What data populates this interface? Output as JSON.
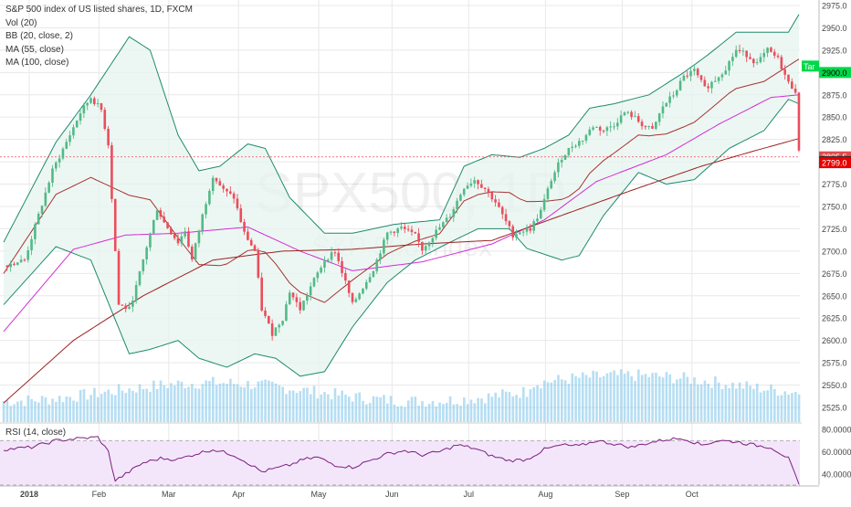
{
  "legend": {
    "title": "S&P 500 index of US listed shares, 1D, FXCM",
    "vol": "Vol (20)",
    "bb": "BB (20, close, 2)",
    "ma55": "MA (55, close)",
    "ma100": "MA (100, close)"
  },
  "rsi_legend": "RSI (14, close)",
  "watermark": {
    "symbol": "SPX500, 1D",
    "name": "S&P 500 index"
  },
  "colors": {
    "up": "#53b987",
    "down": "#eb4d5c",
    "bb": "#1e8a6e",
    "bb_fill": "#e5f4ef",
    "ma20": "#a83232",
    "ma55": "#d42bd4",
    "ma100": "#9c2222",
    "volume": "#7ac3ea",
    "rsi_line": "#7b1f7b",
    "rsi_band": "#f3e6fb",
    "target_green": "#00d84a",
    "target_fill": "#ccf7d9",
    "stop_fill": "#fbd3d3",
    "grid": "#e8e8e8"
  },
  "price_labels": {
    "target": "2900.0",
    "target_text": "Tar",
    "last": "2805.5",
    "current": "2800.0",
    "stop": "2799.0"
  },
  "chart_data": [
    {
      "type": "line",
      "title": "S&P 500 index of US listed shares, 1D, FXCM",
      "x_ticks": [
        "2018",
        "Feb",
        "Mar",
        "Apr",
        "May",
        "Jun",
        "Jul",
        "Aug",
        "Sep",
        "Oct"
      ],
      "y_ticks": [
        "2975.0",
        "2950.0",
        "2925.0",
        "2900.0",
        "2875.0",
        "2850.0",
        "2825.0",
        "2800.0",
        "2775.0",
        "2750.0",
        "2725.0",
        "2700.0",
        "2675.0",
        "2650.0",
        "2625.0",
        "2600.0",
        "2575.0",
        "2550.0",
        "2525.0"
      ],
      "ylim": [
        2508,
        2982
      ],
      "series": [
        {
          "name": "Price",
          "points": [
            [
              0,
              2684
            ],
            [
              6,
              2690
            ],
            [
              10,
              2740
            ],
            [
              14,
              2790
            ],
            [
              18,
              2822
            ],
            [
              22,
              2855
            ],
            [
              25,
              2872
            ],
            [
              28,
              2858
            ],
            [
              30,
              2820
            ],
            [
              33,
              2640
            ],
            [
              36,
              2635
            ],
            [
              38,
              2660
            ],
            [
              41,
              2705
            ],
            [
              44,
              2748
            ],
            [
              46,
              2732
            ],
            [
              50,
              2710
            ],
            [
              52,
              2723
            ],
            [
              54,
              2690
            ],
            [
              57,
              2740
            ],
            [
              60,
              2785
            ],
            [
              63,
              2768
            ],
            [
              66,
              2760
            ],
            [
              69,
              2720
            ],
            [
              72,
              2700
            ],
            [
              74,
              2635
            ],
            [
              77,
              2608
            ],
            [
              80,
              2625
            ],
            [
              82,
              2655
            ],
            [
              85,
              2635
            ],
            [
              88,
              2660
            ],
            [
              92,
              2690
            ],
            [
              95,
              2700
            ],
            [
              98,
              2665
            ],
            [
              100,
              2640
            ],
            [
              103,
              2660
            ],
            [
              106,
              2680
            ],
            [
              110,
              2720
            ],
            [
              114,
              2726
            ],
            [
              118,
              2717
            ],
            [
              120,
              2702
            ],
            [
              124,
              2722
            ],
            [
              128,
              2740
            ],
            [
              132,
              2772
            ],
            [
              135,
              2780
            ],
            [
              138,
              2770
            ],
            [
              141,
              2755
            ],
            [
              143,
              2740
            ],
            [
              146,
              2718
            ],
            [
              148,
              2722
            ],
            [
              151,
              2725
            ],
            [
              154,
              2745
            ],
            [
              157,
              2780
            ],
            [
              160,
              2805
            ],
            [
              163,
              2818
            ],
            [
              166,
              2825
            ],
            [
              169,
              2840
            ],
            [
              172,
              2835
            ],
            [
              175,
              2842
            ],
            [
              178,
              2855
            ],
            [
              180,
              2852
            ],
            [
              183,
              2842
            ],
            [
              186,
              2835
            ],
            [
              189,
              2862
            ],
            [
              192,
              2875
            ],
            [
              195,
              2895
            ],
            [
              198,
              2902
            ],
            [
              201,
              2882
            ],
            [
              204,
              2892
            ],
            [
              207,
              2905
            ],
            [
              210,
              2925
            ],
            [
              213,
              2920
            ],
            [
              216,
              2910
            ],
            [
              219,
              2925
            ],
            [
              222,
              2915
            ],
            [
              225,
              2888
            ],
            [
              227,
              2880
            ],
            [
              228,
              2810
            ]
          ]
        },
        {
          "name": "MA (55, close)",
          "points": [
            [
              0,
              2610
            ],
            [
              20,
              2702
            ],
            [
              35,
              2718
            ],
            [
              50,
              2720
            ],
            [
              70,
              2727
            ],
            [
              85,
              2700
            ],
            [
              100,
              2678
            ],
            [
              120,
              2688
            ],
            [
              140,
              2708
            ],
            [
              155,
              2735
            ],
            [
              170,
              2778
            ],
            [
              190,
              2808
            ],
            [
              205,
              2842
            ],
            [
              220,
              2872
            ],
            [
              228,
              2875
            ]
          ]
        },
        {
          "name": "MA (100, close)",
          "points": [
            [
              0,
              2530
            ],
            [
              20,
              2600
            ],
            [
              40,
              2650
            ],
            [
              60,
              2690
            ],
            [
              80,
              2700
            ],
            [
              100,
              2702
            ],
            [
              120,
              2708
            ],
            [
              140,
              2712
            ],
            [
              160,
              2740
            ],
            [
              180,
              2768
            ],
            [
              200,
              2795
            ],
            [
              215,
              2812
            ],
            [
              228,
              2826
            ]
          ]
        },
        {
          "name": "BB (20, close, 2) upper",
          "points": [
            [
              0,
              2710
            ],
            [
              15,
              2822
            ],
            [
              25,
              2875
            ],
            [
              36,
              2940
            ],
            [
              42,
              2925
            ],
            [
              50,
              2830
            ],
            [
              56,
              2790
            ],
            [
              62,
              2795
            ],
            [
              70,
              2820
            ],
            [
              75,
              2815
            ],
            [
              82,
              2760
            ],
            [
              92,
              2720
            ],
            [
              100,
              2720
            ],
            [
              112,
              2730
            ],
            [
              125,
              2735
            ],
            [
              132,
              2795
            ],
            [
              140,
              2808
            ],
            [
              148,
              2805
            ],
            [
              155,
              2815
            ],
            [
              162,
              2830
            ],
            [
              168,
              2860
            ],
            [
              175,
              2865
            ],
            [
              185,
              2875
            ],
            [
              195,
              2900
            ],
            [
              202,
              2920
            ],
            [
              210,
              2945
            ],
            [
              218,
              2945
            ],
            [
              225,
              2945
            ],
            [
              228,
              2965
            ]
          ]
        },
        {
          "name": "BB (20, close, 2) lower",
          "points": [
            [
              0,
              2640
            ],
            [
              15,
              2705
            ],
            [
              25,
              2690
            ],
            [
              36,
              2585
            ],
            [
              42,
              2590
            ],
            [
              50,
              2600
            ],
            [
              56,
              2580
            ],
            [
              64,
              2570
            ],
            [
              72,
              2585
            ],
            [
              78,
              2580
            ],
            [
              85,
              2560
            ],
            [
              92,
              2565
            ],
            [
              100,
              2615
            ],
            [
              110,
              2665
            ],
            [
              118,
              2690
            ],
            [
              128,
              2710
            ],
            [
              136,
              2725
            ],
            [
              145,
              2725
            ],
            [
              150,
              2703
            ],
            [
              160,
              2690
            ],
            [
              165,
              2695
            ],
            [
              172,
              2740
            ],
            [
              182,
              2788
            ],
            [
              190,
              2775
            ],
            [
              198,
              2780
            ],
            [
              208,
              2815
            ],
            [
              218,
              2835
            ],
            [
              225,
              2870
            ],
            [
              228,
              2865
            ]
          ]
        }
      ]
    },
    {
      "type": "line",
      "title": "RSI (14, close)",
      "y_ticks": [
        "80.0000",
        "60.0000",
        "40.0000"
      ],
      "ylim": [
        30,
        85
      ],
      "bands": [
        70,
        30
      ],
      "series": [
        {
          "name": "RSI (14, close)",
          "points": [
            [
              0,
              62
            ],
            [
              8,
              64
            ],
            [
              15,
              70
            ],
            [
              22,
              72
            ],
            [
              27,
              73
            ],
            [
              30,
              60
            ],
            [
              32,
              34
            ],
            [
              36,
              42
            ],
            [
              40,
              50
            ],
            [
              45,
              54
            ],
            [
              50,
              53
            ],
            [
              55,
              58
            ],
            [
              60,
              62
            ],
            [
              66,
              57
            ],
            [
              70,
              50
            ],
            [
              74,
              42
            ],
            [
              78,
              45
            ],
            [
              82,
              48
            ],
            [
              86,
              53
            ],
            [
              90,
              55
            ],
            [
              95,
              48
            ],
            [
              100,
              46
            ],
            [
              105,
              52
            ],
            [
              110,
              58
            ],
            [
              115,
              61
            ],
            [
              120,
              57
            ],
            [
              125,
              60
            ],
            [
              130,
              66
            ],
            [
              135,
              63
            ],
            [
              140,
              56
            ],
            [
              145,
              52
            ],
            [
              150,
              53
            ],
            [
              155,
              62
            ],
            [
              160,
              66
            ],
            [
              165,
              65
            ],
            [
              170,
              70
            ],
            [
              175,
              67
            ],
            [
              180,
              64
            ],
            [
              185,
              68
            ],
            [
              190,
              71
            ],
            [
              195,
              72
            ],
            [
              200,
              66
            ],
            [
              205,
              70
            ],
            [
              210,
              69
            ],
            [
              215,
              66
            ],
            [
              220,
              64
            ],
            [
              225,
              54
            ],
            [
              228,
              30
            ]
          ]
        }
      ]
    }
  ]
}
